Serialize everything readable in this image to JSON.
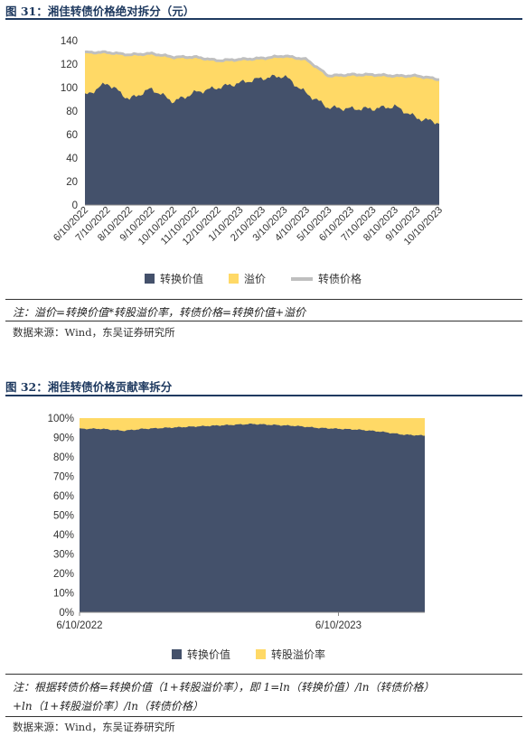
{
  "figure1": {
    "title": "图 31：湘佳转债价格绝对拆分（元）",
    "note": "注：溢价=转换价值*转股溢价率，转债价格=转换价值+溢价",
    "source": "数据来源：Wind，东吴证券研究所"
  },
  "figure2": {
    "title": "图 32：湘佳转债价格贡献率拆分",
    "note_line1": "注：根据转债价格=转换价值（1+转股溢价率），即 1=ln（转换价值）/ln（转债价格）",
    "note_line2": "+ln（1+转股溢价率）/ln（转债价格）",
    "source": "数据来源：Wind，东吴证券研究所"
  },
  "colors": {
    "navy": "#44516b",
    "yellow": "#ffd966",
    "gray": "#bfbfbf"
  },
  "chart_data": [
    {
      "type": "area",
      "title": "",
      "categories": [
        "6/10/2022",
        "7/10/2022",
        "8/10/2022",
        "9/10/2022",
        "10/10/2022",
        "11/10/2022",
        "12/10/2022",
        "1/10/2023",
        "2/10/2023",
        "3/10/2023",
        "4/10/2023",
        "5/10/2023",
        "6/10/2023",
        "7/10/2023",
        "8/10/2023",
        "9/10/2023",
        "10/10/2023"
      ],
      "ylim": [
        0,
        140
      ],
      "yticks": [
        0,
        20,
        40,
        60,
        80,
        100,
        120,
        140
      ],
      "stacked": true,
      "series": [
        {
          "name": "转换价值",
          "kind": "area",
          "values": [
            93,
            104,
            90,
            99,
            88,
            96,
            100,
            104,
            108,
            110,
            95,
            83,
            82,
            82,
            84,
            74,
            70
          ]
        },
        {
          "name": "溢价",
          "kind": "area",
          "values": [
            37,
            26,
            38,
            30,
            38,
            30,
            23,
            20,
            17,
            17,
            29,
            27,
            29,
            29,
            26,
            36,
            37
          ]
        },
        {
          "name": "转债价格",
          "kind": "line",
          "values": [
            130,
            130,
            128,
            129,
            126,
            126,
            123,
            124,
            125,
            127,
            124,
            110,
            111,
            111,
            110,
            110,
            107
          ]
        }
      ],
      "legend": [
        "转换价值",
        "溢价",
        "转债价格"
      ],
      "legend_position": "bottom",
      "grid": false
    },
    {
      "type": "area",
      "title": "",
      "categories": [
        "6/10/2022",
        "6/10/2023"
      ],
      "x": [
        "6/10/2022",
        "7/10/2022",
        "8/10/2022",
        "9/10/2022",
        "10/10/2022",
        "11/10/2022",
        "12/10/2022",
        "1/10/2023",
        "2/10/2023",
        "3/10/2023",
        "4/10/2023",
        "5/10/2023",
        "6/10/2023",
        "7/10/2023",
        "8/10/2023",
        "9/10/2023",
        "10/10/2023"
      ],
      "ylim": [
        0,
        100
      ],
      "yticks": [
        "0%",
        "10%",
        "20%",
        "30%",
        "40%",
        "50%",
        "60%",
        "70%",
        "80%",
        "90%",
        "100%"
      ],
      "stacked": true,
      "series": [
        {
          "name": "转换价值",
          "values": [
            94.5,
            94.5,
            93.5,
            94.5,
            95,
            95.5,
            96,
            96.5,
            97,
            96.5,
            96,
            95,
            94.5,
            94,
            93,
            91.5,
            91
          ]
        },
        {
          "name": "转股溢价率",
          "values": [
            5.5,
            5.5,
            6.5,
            5.5,
            5,
            4.5,
            4,
            3.5,
            3,
            3.5,
            4,
            5,
            5.5,
            6,
            7,
            8.5,
            9
          ]
        }
      ],
      "legend": [
        "转换价值",
        "转股溢价率"
      ],
      "legend_position": "bottom",
      "grid": false
    }
  ]
}
